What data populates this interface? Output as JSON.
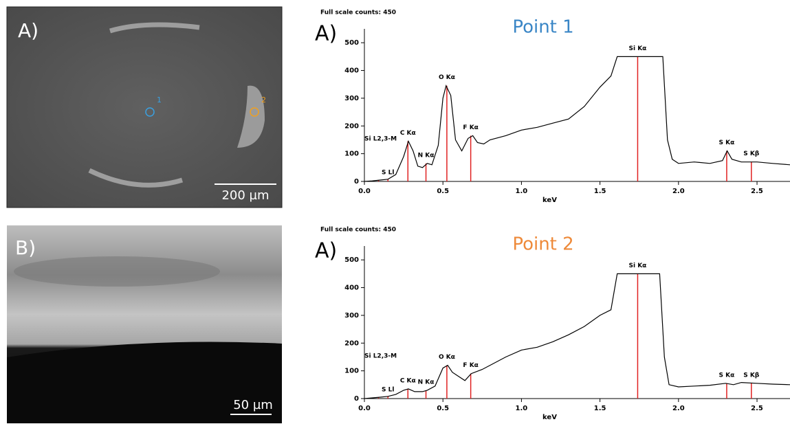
{
  "images": [
    {
      "label": "A)",
      "scale": "200 µm",
      "markers": [
        "1",
        "2"
      ]
    },
    {
      "label": "B)",
      "scale": "50 µm"
    }
  ],
  "chart_data": [
    {
      "type": "line",
      "header": "Full scale counts: 450",
      "panel": "A)",
      "title": "Point 1",
      "title_color": "#3a86c6",
      "xlabel": "keV",
      "color": "#000000",
      "peak_color": "#e02020",
      "xlim": [
        0,
        2.71
      ],
      "ylim": [
        0,
        550
      ],
      "xticks": [
        {
          "value": 0,
          "label": "0.0"
        },
        0.5,
        {
          "value": 1,
          "label": "1.0"
        },
        1.5,
        {
          "value": 2,
          "label": "2.0"
        },
        2.5
      ],
      "yticks": [
        0,
        100,
        200,
        300,
        400,
        500
      ],
      "x": [
        0,
        0.05,
        0.1,
        0.15,
        0.2,
        0.25,
        0.28,
        0.31,
        0.34,
        0.37,
        0.4,
        0.43,
        0.47,
        0.5,
        0.52,
        0.55,
        0.58,
        0.62,
        0.66,
        0.69,
        0.72,
        0.76,
        0.8,
        0.9,
        1.0,
        1.1,
        1.2,
        1.3,
        1.4,
        1.5,
        1.57,
        1.61,
        1.9,
        1.93,
        1.96,
        2.0,
        2.1,
        2.2,
        2.28,
        2.31,
        2.34,
        2.4,
        2.5,
        2.6,
        2.71
      ],
      "values": [
        0,
        2,
        5,
        8,
        25,
        90,
        145,
        110,
        55,
        50,
        65,
        60,
        130,
        300,
        345,
        310,
        150,
        110,
        155,
        165,
        140,
        135,
        150,
        165,
        185,
        195,
        210,
        225,
        270,
        340,
        380,
        450,
        450,
        150,
        80,
        65,
        70,
        65,
        75,
        110,
        80,
        70,
        70,
        65,
        60
      ],
      "peaks": [
        {
          "label": "Si L2,3-M",
          "x": 0.09,
          "y": 5
        },
        {
          "label": "S Ll",
          "x": 0.15,
          "y": 8
        },
        {
          "label": "C Kα",
          "x": 0.277,
          "y": 145
        },
        {
          "label": "N Kα",
          "x": 0.392,
          "y": 65
        },
        {
          "label": "O Kα",
          "x": 0.525,
          "y": 345
        },
        {
          "label": "F Kα",
          "x": 0.677,
          "y": 165
        },
        {
          "label": "Si Kα",
          "x": 1.74,
          "y": 450
        },
        {
          "label": "S Kα",
          "x": 2.307,
          "y": 110
        },
        {
          "label": "S Kβ",
          "x": 2.464,
          "y": 70
        }
      ]
    },
    {
      "type": "line",
      "header": "Full scale counts: 450",
      "panel": "A)",
      "title": "Point 2",
      "title_color": "#ee8a3a",
      "xlabel": "keV",
      "color": "#000000",
      "peak_color": "#e02020",
      "xlim": [
        0,
        2.71
      ],
      "ylim": [
        0,
        550
      ],
      "xticks": [
        {
          "value": 0,
          "label": "0.0"
        },
        0.5,
        {
          "value": 1,
          "label": "1.0"
        },
        1.5,
        {
          "value": 2,
          "label": "2.0"
        },
        2.5
      ],
      "yticks": [
        0,
        100,
        200,
        300,
        400,
        500
      ],
      "x": [
        0,
        0.1,
        0.15,
        0.2,
        0.25,
        0.28,
        0.32,
        0.37,
        0.4,
        0.45,
        0.5,
        0.53,
        0.56,
        0.6,
        0.64,
        0.68,
        0.75,
        0.8,
        0.9,
        1.0,
        1.1,
        1.2,
        1.3,
        1.4,
        1.5,
        1.57,
        1.61,
        1.88,
        1.91,
        1.94,
        2.0,
        2.1,
        2.2,
        2.3,
        2.35,
        2.4,
        2.5,
        2.6,
        2.71
      ],
      "values": [
        0,
        5,
        8,
        15,
        30,
        35,
        25,
        25,
        30,
        45,
        110,
        120,
        95,
        80,
        65,
        90,
        105,
        120,
        150,
        175,
        185,
        205,
        230,
        260,
        300,
        320,
        450,
        450,
        150,
        50,
        42,
        45,
        48,
        55,
        50,
        58,
        55,
        52,
        50
      ],
      "peaks": [
        {
          "label": "Si L2,3-M",
          "x": 0.09,
          "y": 5
        },
        {
          "label": "S Ll",
          "x": 0.15,
          "y": 8
        },
        {
          "label": "C Kα",
          "x": 0.277,
          "y": 35
        },
        {
          "label": "N Kα",
          "x": 0.392,
          "y": 30
        },
        {
          "label": "O Kα",
          "x": 0.525,
          "y": 120
        },
        {
          "label": "F Kα",
          "x": 0.677,
          "y": 90
        },
        {
          "label": "Si Kα",
          "x": 1.74,
          "y": 450
        },
        {
          "label": "S Kα",
          "x": 2.307,
          "y": 55
        },
        {
          "label": "S Kβ",
          "x": 2.464,
          "y": 55
        }
      ]
    }
  ]
}
